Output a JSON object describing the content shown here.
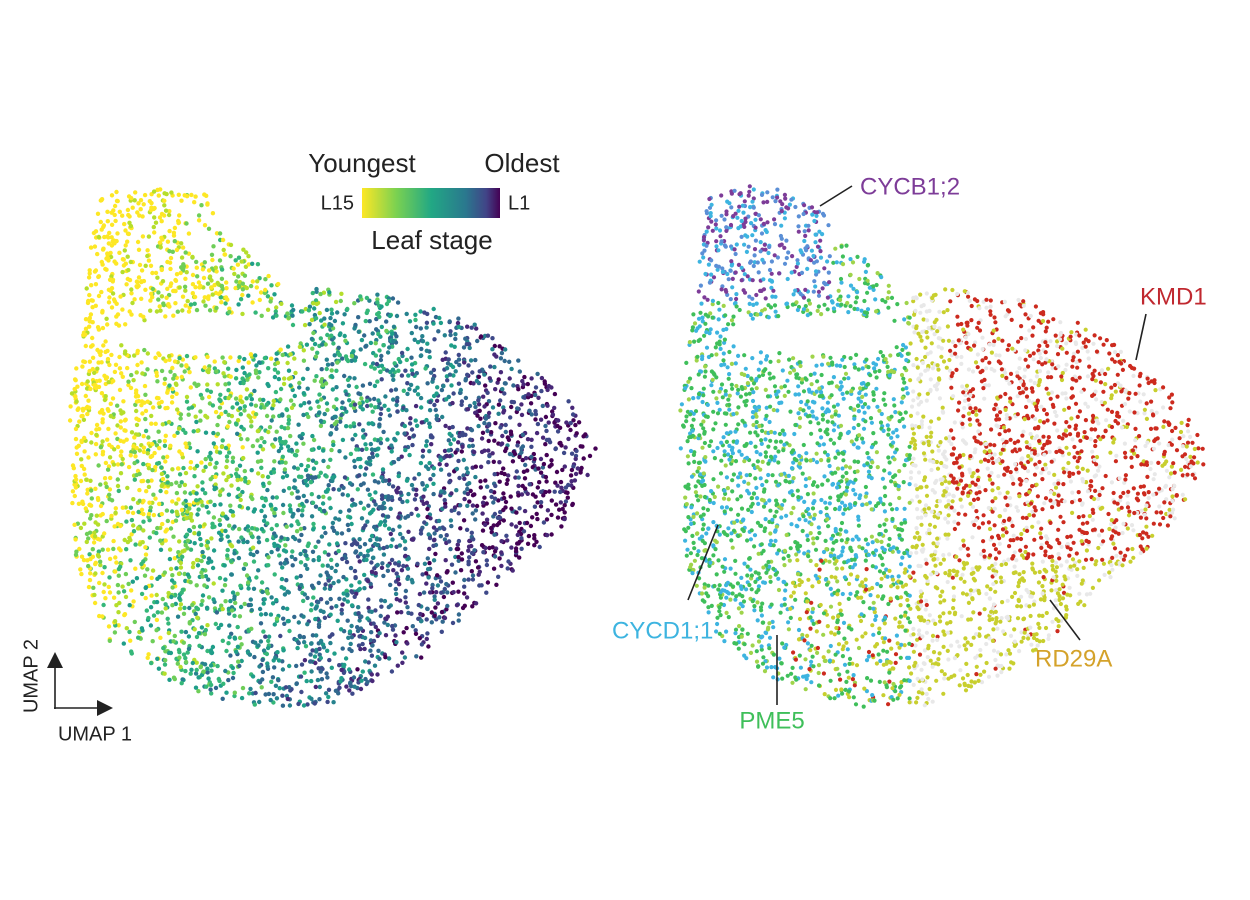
{
  "left_panel": {
    "legend": {
      "youngest": "Youngest",
      "oldest": "Oldest",
      "low_label": "L15",
      "high_label": "L1",
      "title": "Leaf stage"
    },
    "axes": {
      "y_label": "UMAP 2",
      "x_label": "UMAP 1"
    }
  },
  "right_panel": {
    "labels": [
      {
        "text": "CYCB1;2",
        "color": "#7d3c98"
      },
      {
        "text": "KMD1",
        "color": "#c0282f"
      },
      {
        "text": "CYCD1;1",
        "color": "#3db4e0"
      },
      {
        "text": "PME5",
        "color": "#3fbf5a"
      },
      {
        "text": "RD29A",
        "color": "#d4a22a"
      }
    ]
  }
}
